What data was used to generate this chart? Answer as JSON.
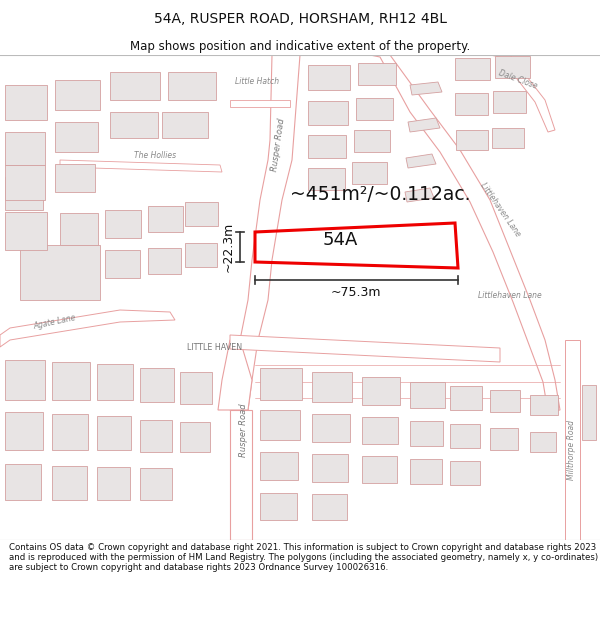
{
  "title": "54A, RUSPER ROAD, HORSHAM, RH12 4BL",
  "subtitle": "Map shows position and indicative extent of the property.",
  "area_label": "~451m²/~0.112ac.",
  "plot_label": "54A",
  "dim_width": "~75.3m",
  "dim_height": "~22.3m",
  "street_label": "LITTLE HAVEN",
  "footer_text": "Contains OS data © Crown copyright and database right 2021. This information is subject to Crown copyright and database rights 2023 and is reproduced with the permission of HM Land Registry. The polygons (including the associated geometry, namely x, y co-ordinates) are subject to Crown copyright and database rights 2023 Ordnance Survey 100026316.",
  "map_bg": "#ffffff",
  "building_fill": "#e8e4e4",
  "building_edge": "#d4a0a0",
  "road_fill": "#ffffff",
  "road_edge": "#e8a0a0",
  "plot_stroke": "#ee0000",
  "title_fontsize": 10,
  "subtitle_fontsize": 8.5
}
